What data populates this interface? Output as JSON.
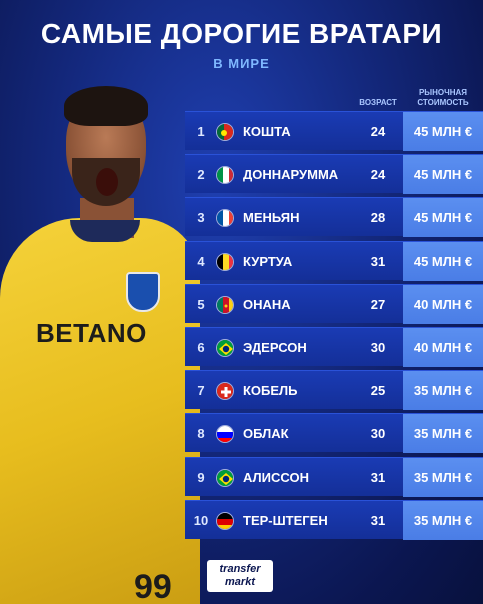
{
  "header": {
    "title": "САМЫЕ ДОРОГИЕ ВРАТАРИ",
    "subtitle": "В МИРЕ"
  },
  "player": {
    "sponsor": "BETANO",
    "shirt_number": "99"
  },
  "table": {
    "age_header": "ВОЗРАСТ",
    "value_header": "РЫНОЧНАЯ СТОИМОСТЬ",
    "rows": [
      {
        "rank": "1",
        "flag": "portugal-flag-icon",
        "name": "КОШТА",
        "age": "24",
        "value": "45 МЛН €"
      },
      {
        "rank": "2",
        "flag": "italy-flag-icon",
        "name": "ДОННАРУММА",
        "age": "24",
        "value": "45 МЛН €"
      },
      {
        "rank": "3",
        "flag": "france-flag-icon",
        "name": "МЕНЬЯН",
        "age": "28",
        "value": "45 МЛН €"
      },
      {
        "rank": "4",
        "flag": "belgium-flag-icon",
        "name": "КУРТУА",
        "age": "31",
        "value": "45 МЛН €"
      },
      {
        "rank": "5",
        "flag": "cameroon-flag-icon",
        "name": "ОНАНА",
        "age": "27",
        "value": "40 МЛН €"
      },
      {
        "rank": "6",
        "flag": "brazil-flag-icon",
        "name": "ЭДЕРСОН",
        "age": "30",
        "value": "40 МЛН €"
      },
      {
        "rank": "7",
        "flag": "switzerland-flag-icon",
        "name": "КОБЕЛЬ",
        "age": "25",
        "value": "35 МЛН €"
      },
      {
        "rank": "8",
        "flag": "slovenia-flag-icon",
        "name": "ОБЛАК",
        "age": "30",
        "value": "35 МЛН €"
      },
      {
        "rank": "9",
        "flag": "brazil-flag-icon",
        "name": "АЛИССОН",
        "age": "31",
        "value": "35 МЛН €"
      },
      {
        "rank": "10",
        "flag": "germany-flag-icon",
        "name": "ТЕР-ШТЕГЕН",
        "age": "31",
        "value": "35 МЛН €"
      }
    ]
  },
  "footer": {
    "logo_line1": "transfer",
    "logo_line2": "markt"
  },
  "colors": {
    "background": "#13277a",
    "row": "#1a3bb4",
    "value_cell": "#5b8ff0",
    "subtitle": "#7fb8ff"
  }
}
